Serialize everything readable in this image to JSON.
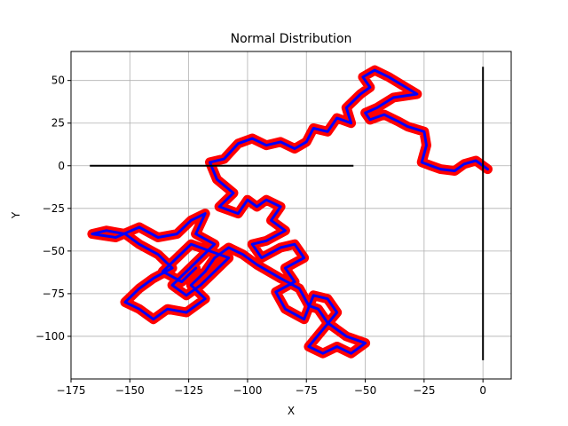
{
  "chart_data": {
    "type": "line",
    "title": "Normal Distribution",
    "xlabel": "X",
    "ylabel": "Y",
    "xlim": [
      -175,
      12
    ],
    "ylim": [
      -125,
      67
    ],
    "xticks": [
      -175,
      -150,
      -125,
      -100,
      -75,
      -50,
      -25,
      0
    ],
    "yticks": [
      -100,
      -75,
      -50,
      -25,
      0,
      25,
      50
    ],
    "grid": true,
    "colors": {
      "walk_outer": "#ff0000",
      "walk_inner": "#0000ff",
      "axes_lines": "#000000",
      "grid": "#b0b0b0"
    },
    "series": [
      {
        "kind": "random-walk",
        "points": [
          [
            0,
            0
          ],
          [
            2,
            -2
          ],
          [
            -3,
            3
          ],
          [
            -8,
            1
          ],
          [
            -12,
            -3
          ],
          [
            -18,
            -2
          ],
          [
            -22,
            0
          ],
          [
            -26,
            2
          ],
          [
            -24,
            12
          ],
          [
            -25,
            20
          ],
          [
            -32,
            23
          ],
          [
            -36,
            26
          ],
          [
            -42,
            30
          ],
          [
            -48,
            27
          ],
          [
            -50,
            31
          ],
          [
            -45,
            34
          ],
          [
            -38,
            40
          ],
          [
            -28,
            42
          ],
          [
            -34,
            47
          ],
          [
            -40,
            52
          ],
          [
            -46,
            56
          ],
          [
            -51,
            52
          ],
          [
            -48,
            46
          ],
          [
            -52,
            42
          ],
          [
            -58,
            34
          ],
          [
            -56,
            25
          ],
          [
            -62,
            28
          ],
          [
            -66,
            20
          ],
          [
            -72,
            22
          ],
          [
            -75,
            14
          ],
          [
            -80,
            10
          ],
          [
            -86,
            14
          ],
          [
            -92,
            12
          ],
          [
            -98,
            16
          ],
          [
            -104,
            13
          ],
          [
            -110,
            4
          ],
          [
            -116,
            2
          ],
          [
            -113,
            -8
          ],
          [
            -106,
            -16
          ],
          [
            -112,
            -24
          ],
          [
            -104,
            -28
          ],
          [
            -100,
            -20
          ],
          [
            -96,
            -24
          ],
          [
            -92,
            -20
          ],
          [
            -86,
            -24
          ],
          [
            -90,
            -32
          ],
          [
            -84,
            -38
          ],
          [
            -92,
            -44
          ],
          [
            -98,
            -46
          ],
          [
            -94,
            -54
          ],
          [
            -86,
            -48
          ],
          [
            -80,
            -46
          ],
          [
            -76,
            -54
          ],
          [
            -84,
            -60
          ],
          [
            -80,
            -68
          ],
          [
            -88,
            -74
          ],
          [
            -84,
            -84
          ],
          [
            -76,
            -90
          ],
          [
            -72,
            -76
          ],
          [
            -66,
            -78
          ],
          [
            -62,
            -86
          ],
          [
            -68,
            -96
          ],
          [
            -74,
            -106
          ],
          [
            -68,
            -110
          ],
          [
            -62,
            -106
          ],
          [
            -56,
            -110
          ],
          [
            -50,
            -104
          ],
          [
            -58,
            -100
          ],
          [
            -66,
            -92
          ],
          [
            -70,
            -84
          ],
          [
            -74,
            -82
          ],
          [
            -78,
            -72
          ],
          [
            -86,
            -66
          ],
          [
            -96,
            -58
          ],
          [
            -102,
            -52
          ],
          [
            -108,
            -48
          ],
          [
            -114,
            -54
          ],
          [
            -118,
            -62
          ],
          [
            -124,
            -70
          ],
          [
            -118,
            -78
          ],
          [
            -126,
            -86
          ],
          [
            -134,
            -84
          ],
          [
            -140,
            -90
          ],
          [
            -146,
            -84
          ],
          [
            -152,
            -80
          ],
          [
            -146,
            -72
          ],
          [
            -140,
            -66
          ],
          [
            -132,
            -60
          ],
          [
            -138,
            -52
          ],
          [
            -146,
            -46
          ],
          [
            -152,
            -40
          ],
          [
            -160,
            -38
          ],
          [
            -166,
            -40
          ],
          [
            -156,
            -42
          ],
          [
            -146,
            -36
          ],
          [
            -138,
            -42
          ],
          [
            -130,
            -40
          ],
          [
            -124,
            -32
          ],
          [
            -118,
            -28
          ],
          [
            -122,
            -40
          ],
          [
            -114,
            -46
          ],
          [
            -120,
            -54
          ],
          [
            -126,
            -62
          ],
          [
            -132,
            -70
          ],
          [
            -126,
            -76
          ],
          [
            -120,
            -70
          ],
          [
            -114,
            -62
          ],
          [
            -108,
            -54
          ],
          [
            -116,
            -50
          ],
          [
            -124,
            -46
          ],
          [
            -130,
            -54
          ],
          [
            -136,
            -62
          ],
          [
            -128,
            -68
          ],
          [
            -122,
            -60
          ]
        ]
      },
      {
        "kind": "line",
        "points": [
          [
            -167,
            0
          ],
          [
            -55,
            0
          ]
        ]
      },
      {
        "kind": "line",
        "points": [
          [
            0,
            -114
          ],
          [
            0,
            58
          ]
        ]
      }
    ]
  }
}
